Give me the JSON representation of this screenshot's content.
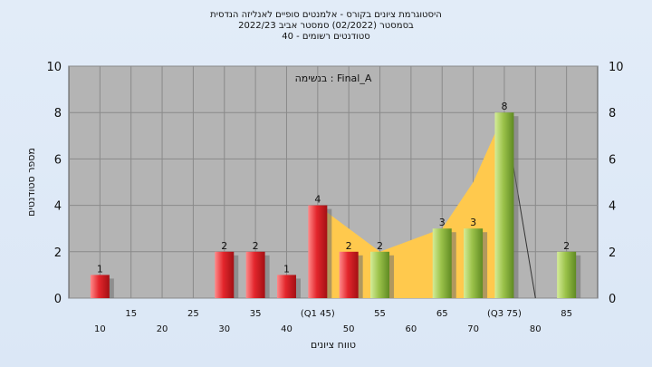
{
  "title_lines": [
    "היסטוגרמת ציונים בקורס - אלמנטים סופיים לאנליזה הנדסית",
    "בסמסטר  (02/2022)  סמסטר אביב 2022/23",
    "סטודנטים רשומים - 40"
  ],
  "chart_data": {
    "type": "bar",
    "subtitle": "בנשימה : Final_A",
    "xlabel": "טווח ציונים",
    "ylabel": "מספר סטודנטים",
    "ylim": [
      0,
      10
    ],
    "yticks": [
      0,
      2,
      4,
      6,
      8,
      10
    ],
    "grid": true,
    "xlim": [
      5,
      90
    ],
    "x_tick_labels": [
      {
        "x": 10,
        "label": "10",
        "row": 2
      },
      {
        "x": 15,
        "label": "15",
        "row": 1
      },
      {
        "x": 20,
        "label": "20",
        "row": 2
      },
      {
        "x": 25,
        "label": "25",
        "row": 1
      },
      {
        "x": 30,
        "label": "30",
        "row": 2
      },
      {
        "x": 35,
        "label": "35",
        "row": 1
      },
      {
        "x": 40,
        "label": "40",
        "row": 2
      },
      {
        "x": 45,
        "label": "(Q1 45)",
        "row": 1
      },
      {
        "x": 50,
        "label": "50",
        "row": 2
      },
      {
        "x": 55,
        "label": "55",
        "row": 1
      },
      {
        "x": 60,
        "label": "60",
        "row": 2
      },
      {
        "x": 65,
        "label": "65",
        "row": 1
      },
      {
        "x": 70,
        "label": "70",
        "row": 2
      },
      {
        "x": 75,
        "label": "(Q3 75)",
        "row": 1
      },
      {
        "x": 80,
        "label": "80",
        "row": 2
      },
      {
        "x": 85,
        "label": "85",
        "row": 1
      }
    ],
    "bars": [
      {
        "x": 10,
        "value": 1,
        "color": "red"
      },
      {
        "x": 30,
        "value": 2,
        "color": "red"
      },
      {
        "x": 35,
        "value": 2,
        "color": "red"
      },
      {
        "x": 40,
        "value": 1,
        "color": "red"
      },
      {
        "x": 45,
        "value": 4,
        "color": "red"
      },
      {
        "x": 50,
        "value": 2,
        "color": "red"
      },
      {
        "x": 55,
        "value": 2,
        "color": "green"
      },
      {
        "x": 65,
        "value": 3,
        "color": "green"
      },
      {
        "x": 70,
        "value": 3,
        "color": "green"
      },
      {
        "x": 75,
        "value": 8,
        "color": "green"
      },
      {
        "x": 85,
        "value": 2,
        "color": "green"
      }
    ],
    "quartile_area": [
      {
        "x": 45,
        "y": 4
      },
      {
        "x": 50,
        "y": 3
      },
      {
        "x": 55,
        "y": 2
      },
      {
        "x": 60,
        "y": 2.5
      },
      {
        "x": 65,
        "y": 3
      },
      {
        "x": 70,
        "y": 5
      },
      {
        "x": 75,
        "y": 8
      }
    ],
    "drop_line": [
      {
        "x": 75,
        "y": 8
      },
      {
        "x": 80,
        "y": 0
      }
    ],
    "colors": {
      "plot_bg": "#b4b4b4",
      "red_bar": "#e3262c",
      "green_bar": "#9bc24a",
      "area": "#ffc94d",
      "page_bg": "#dde8f6"
    }
  }
}
